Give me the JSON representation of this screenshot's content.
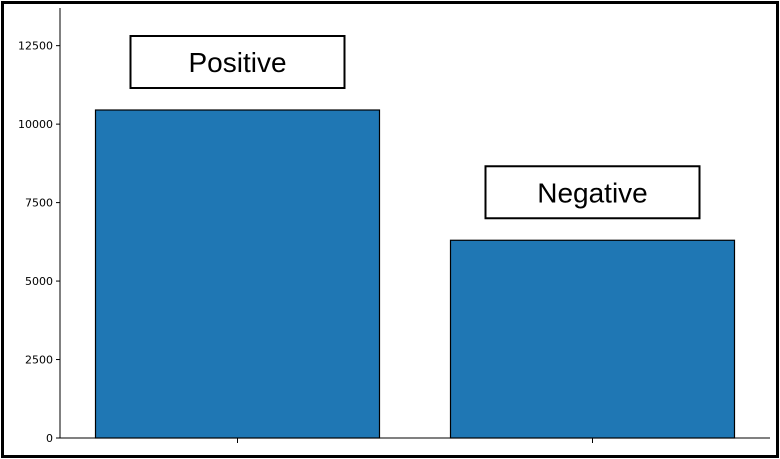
{
  "chart_data": {
    "type": "bar",
    "categories": [
      "Positive",
      "Negative"
    ],
    "values": [
      10450,
      6300
    ],
    "data_labels": [
      "Positive",
      "Negative"
    ],
    "yticks": [
      0,
      2500,
      5000,
      7500,
      10000,
      12500
    ],
    "ytick_labels": [
      "0",
      "2500",
      "5000",
      "7500",
      "10000",
      "12500"
    ],
    "ylim": [
      0,
      13700
    ],
    "title": "",
    "xlabel": "",
    "ylabel": "",
    "grid": false,
    "bar_color": "#1f77b4",
    "edge_color": "#000000"
  }
}
